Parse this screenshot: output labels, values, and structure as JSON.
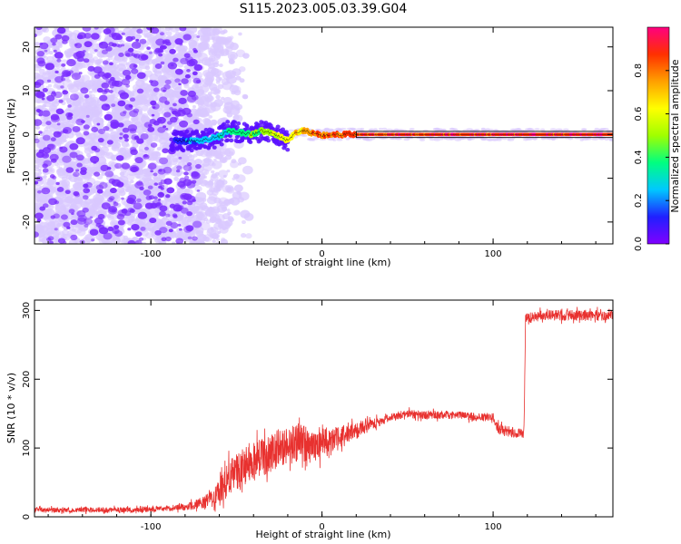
{
  "title": "S115.2023.005.03.39.G04",
  "colors": {
    "snr_line": "#e8312f",
    "track_outline": "#000000",
    "noise_light": "#d9c8ff",
    "noise_dark": "#7a2cff"
  },
  "chart_data": [
    {
      "type": "heatmap",
      "xlabel": "Height of straight line (km)",
      "ylabel": "Frequency (Hz)",
      "xlim": [
        -168,
        170
      ],
      "ylim": [
        -25,
        24.5
      ],
      "xticks": [
        -100,
        0,
        100
      ],
      "yticks": [
        -20,
        -10,
        0,
        10,
        20
      ],
      "grid": false,
      "colorbar": {
        "label": "Normalized spectral amplitude",
        "range": [
          0,
          1
        ],
        "ticks": [
          "0.0",
          "0.2",
          "0.4",
          "0.6",
          "0.8"
        ],
        "tick_values": [
          0,
          0.2,
          0.4,
          0.6,
          0.8
        ],
        "colormap": [
          "#8000ff",
          "#2020ff",
          "#00c8ff",
          "#00ff80",
          "#a0ff00",
          "#ffff00",
          "#ffa000",
          "#ff3000",
          "#ff0080"
        ]
      },
      "noise_region_x": [
        -168,
        -62
      ],
      "track": [
        {
          "x": -85,
          "y": -1.5,
          "amp": 0.15
        },
        {
          "x": -75,
          "y": -1.5,
          "amp": 0.2
        },
        {
          "x": -65,
          "y": -1.0,
          "amp": 0.25
        },
        {
          "x": -60,
          "y": -0.5,
          "amp": 0.3
        },
        {
          "x": -55,
          "y": 0.8,
          "amp": 0.35
        },
        {
          "x": -48,
          "y": 0.5,
          "amp": 0.4
        },
        {
          "x": -42,
          "y": 0.0,
          "amp": 0.45
        },
        {
          "x": -35,
          "y": 0.8,
          "amp": 0.5
        },
        {
          "x": -30,
          "y": 0.3,
          "amp": 0.55
        },
        {
          "x": -25,
          "y": -0.5,
          "amp": 0.6
        },
        {
          "x": -20,
          "y": -1.5,
          "amp": 0.65
        },
        {
          "x": -15,
          "y": 0.5,
          "amp": 0.7
        },
        {
          "x": -10,
          "y": 0.8,
          "amp": 0.75
        },
        {
          "x": -5,
          "y": 0.3,
          "amp": 0.8
        },
        {
          "x": 0,
          "y": -0.3,
          "amp": 0.85
        },
        {
          "x": 10,
          "y": 0.0,
          "amp": 0.88
        },
        {
          "x": 20,
          "y": 0.0,
          "amp": 0.9
        },
        {
          "x": 40,
          "y": 0.0,
          "amp": 0.92
        },
        {
          "x": 60,
          "y": 0.0,
          "amp": 0.93
        },
        {
          "x": 80,
          "y": 0.0,
          "amp": 0.93
        },
        {
          "x": 100,
          "y": 0.0,
          "amp": 0.94
        },
        {
          "x": 120,
          "y": 0.0,
          "amp": 0.94
        },
        {
          "x": 140,
          "y": 0.0,
          "amp": 0.94
        },
        {
          "x": 160,
          "y": 0.0,
          "amp": 0.95
        },
        {
          "x": 170,
          "y": 0.0,
          "amp": 0.95
        }
      ]
    },
    {
      "type": "line",
      "xlabel": "Height of straight line (km)",
      "ylabel": "SNR (10 * v/v)",
      "xlim": [
        -168,
        170
      ],
      "ylim": [
        0,
        315
      ],
      "xticks": [
        -100,
        0,
        100
      ],
      "yticks": [
        0,
        100,
        200,
        300
      ],
      "grid": false,
      "series": [
        {
          "x": [
            -168,
            -150,
            -130,
            -110,
            -90,
            -80,
            -70,
            -62,
            -55,
            -48,
            -40,
            -32,
            -25,
            -18,
            -12,
            -5,
            0,
            5,
            10,
            15,
            20,
            25,
            30,
            40,
            50,
            60,
            70,
            80,
            90,
            100,
            103,
            108,
            113,
            118,
            119,
            125,
            140,
            155,
            170
          ],
          "y": [
            10,
            10,
            10,
            10,
            12,
            14,
            20,
            30,
            55,
            70,
            80,
            90,
            100,
            105,
            110,
            100,
            110,
            105,
            115,
            120,
            125,
            130,
            135,
            145,
            150,
            148,
            148,
            148,
            145,
            145,
            128,
            125,
            122,
            120,
            290,
            292,
            293,
            293,
            292
          ],
          "noise": [
            4,
            4,
            4,
            4,
            4,
            5,
            8,
            15,
            25,
            28,
            28,
            28,
            28,
            28,
            28,
            25,
            25,
            20,
            18,
            14,
            12,
            10,
            8,
            6,
            6,
            6,
            6,
            6,
            6,
            6,
            8,
            8,
            8,
            6,
            8,
            8,
            8,
            8,
            8
          ]
        }
      ]
    }
  ]
}
